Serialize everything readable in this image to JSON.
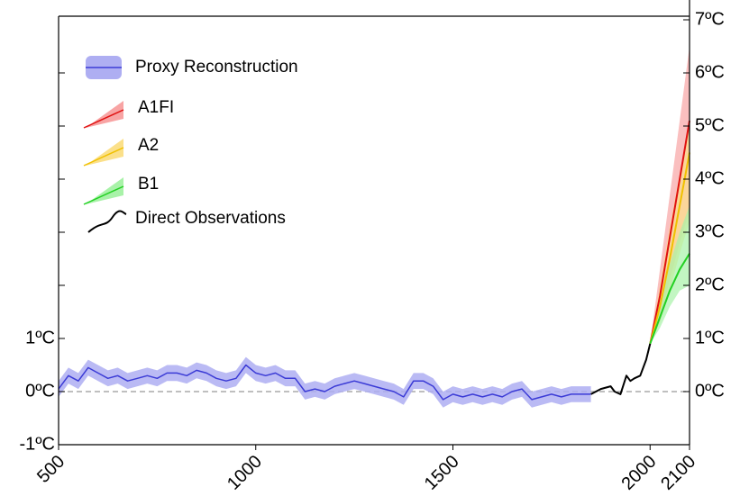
{
  "chart_data": {
    "type": "line",
    "xlim": [
      500,
      2100
    ],
    "xticks": [
      500,
      1000,
      1500,
      2000,
      2100
    ],
    "ylim": [
      -1,
      7
    ],
    "yticks": [
      {
        "value": -1,
        "label": "-1ºC"
      },
      {
        "value": 0,
        "label": "0ºC"
      },
      {
        "value": 1,
        "label": "1ºC"
      },
      {
        "value": 2,
        "label": null
      },
      {
        "value": 3,
        "label": null
      },
      {
        "value": 4,
        "label": null
      },
      {
        "value": 5,
        "label": null
      },
      {
        "value": 6,
        "label": null
      }
    ],
    "y2lim": [
      -1,
      7
    ],
    "y2ticks": [
      {
        "value": 0,
        "label": "0ºC"
      },
      {
        "value": 1,
        "label": "1ºC"
      },
      {
        "value": 2,
        "label": "2ºC"
      },
      {
        "value": 3,
        "label": "3ºC"
      },
      {
        "value": 4,
        "label": "4ºC"
      },
      {
        "value": 5,
        "label": "5ºC"
      },
      {
        "value": 6,
        "label": "6ºC"
      },
      {
        "value": 7,
        "label": "7ºC"
      }
    ],
    "zero_line": true,
    "legend": "upper left",
    "series": [
      {
        "name": "Proxy Reconstruction",
        "color": "#3b3bd6",
        "band_color": "#aeaef2",
        "x": [
          500,
          525,
          550,
          575,
          600,
          625,
          650,
          675,
          700,
          725,
          750,
          775,
          800,
          825,
          850,
          875,
          900,
          925,
          950,
          975,
          1000,
          1025,
          1050,
          1075,
          1100,
          1125,
          1150,
          1175,
          1200,
          1225,
          1250,
          1275,
          1300,
          1325,
          1350,
          1375,
          1400,
          1425,
          1450,
          1475,
          1500,
          1525,
          1550,
          1575,
          1600,
          1625,
          1650,
          1675,
          1700,
          1725,
          1750,
          1775,
          1800,
          1825,
          1850
        ],
        "values": [
          0.05,
          0.3,
          0.2,
          0.45,
          0.35,
          0.25,
          0.3,
          0.2,
          0.25,
          0.3,
          0.25,
          0.35,
          0.35,
          0.3,
          0.4,
          0.35,
          0.25,
          0.2,
          0.25,
          0.5,
          0.35,
          0.3,
          0.35,
          0.25,
          0.25,
          0.0,
          0.05,
          0.0,
          0.1,
          0.15,
          0.2,
          0.15,
          0.1,
          0.05,
          0.0,
          -0.1,
          0.2,
          0.2,
          0.1,
          -0.15,
          -0.05,
          -0.1,
          -0.05,
          -0.1,
          -0.05,
          -0.1,
          0.0,
          0.05,
          -0.15,
          -0.1,
          -0.05,
          -0.1,
          -0.05,
          -0.05,
          -0.05
        ],
        "band": 0.15
      },
      {
        "name": "A1FI",
        "color": "#e01010",
        "band_color": "#f8a4a4",
        "x": [
          2000,
          2025,
          2050,
          2075,
          2100
        ],
        "values": [
          0.9,
          1.8,
          2.9,
          4.0,
          5.1
        ],
        "lower": [
          0.9,
          1.4,
          2.1,
          2.8,
          3.4
        ],
        "upper": [
          0.9,
          2.3,
          3.7,
          5.1,
          6.5
        ]
      },
      {
        "name": "A2",
        "color": "#f0c000",
        "band_color": "#fbe08a",
        "x": [
          2000,
          2025,
          2050,
          2075,
          2100
        ],
        "values": [
          0.9,
          1.6,
          2.5,
          3.5,
          4.5
        ],
        "lower": [
          0.9,
          1.3,
          1.9,
          2.6,
          3.2
        ],
        "upper": [
          0.9,
          2.0,
          3.1,
          4.1,
          5.1
        ]
      },
      {
        "name": "B1",
        "color": "#22d022",
        "band_color": "#a8f2a8",
        "x": [
          2000,
          2025,
          2050,
          2075,
          2100
        ],
        "values": [
          0.9,
          1.4,
          1.9,
          2.3,
          2.6
        ],
        "lower": [
          0.9,
          1.2,
          1.6,
          1.9,
          2.0
        ],
        "upper": [
          0.9,
          1.7,
          2.4,
          3.0,
          3.5
        ]
      },
      {
        "name": "Direct Observations",
        "color": "#000000",
        "x": [
          1850,
          1875,
          1900,
          1910,
          1925,
          1940,
          1950,
          1960,
          1975,
          1990,
          2000
        ],
        "values": [
          -0.05,
          0.05,
          0.1,
          0.0,
          -0.05,
          0.3,
          0.2,
          0.25,
          0.3,
          0.6,
          0.9
        ]
      }
    ]
  }
}
